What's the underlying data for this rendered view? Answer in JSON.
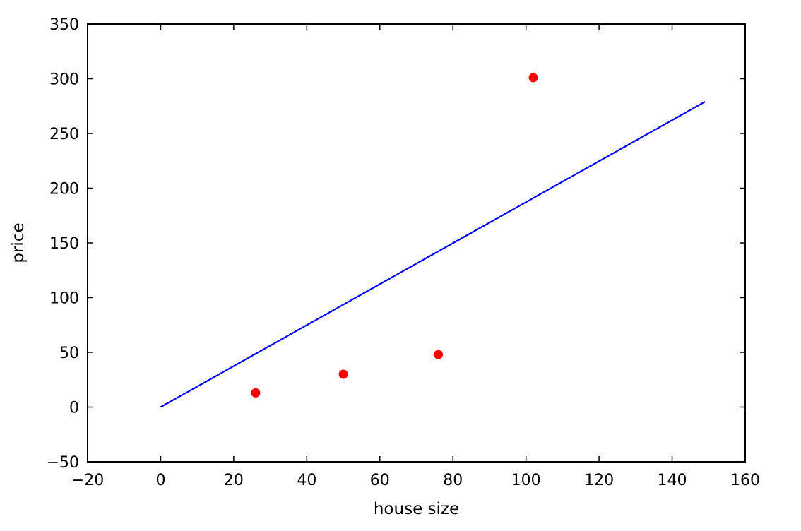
{
  "chart_data": {
    "type": "scatter",
    "title": "",
    "xlabel": "house size",
    "ylabel": "price",
    "xlim": [
      -20,
      160
    ],
    "ylim": [
      -50,
      350
    ],
    "xticks": [
      -20,
      0,
      20,
      40,
      60,
      80,
      100,
      120,
      140,
      160
    ],
    "yticks": [
      -50,
      0,
      50,
      100,
      150,
      200,
      250,
      300,
      350
    ],
    "grid": false,
    "legend": "none",
    "series": [
      {
        "type": "scatter",
        "color": "#ff0000",
        "x": [
          26,
          50,
          76,
          102
        ],
        "y": [
          13,
          30,
          48,
          301
        ]
      },
      {
        "type": "line",
        "color": "#0000ff",
        "x": [
          0,
          149
        ],
        "y": [
          0,
          279
        ]
      }
    ]
  }
}
